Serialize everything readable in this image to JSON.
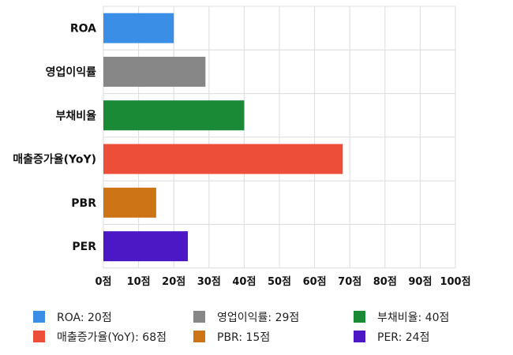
{
  "chart_data": {
    "type": "bar",
    "orientation": "horizontal",
    "categories": [
      "ROA",
      "영업이익률",
      "부채비율",
      "매출증가율(YoY)",
      "PBR",
      "PER"
    ],
    "values": [
      20,
      29,
      40,
      68,
      15,
      24
    ],
    "colors": [
      "#3a8ee6",
      "#878787",
      "#1b8a36",
      "#ec4e3a",
      "#cd7417",
      "#4c17c4"
    ],
    "xlim": [
      0,
      100
    ],
    "x_ticks": [
      0,
      10,
      20,
      30,
      40,
      50,
      60,
      70,
      80,
      90,
      100
    ],
    "tick_suffix": "점",
    "grid": true,
    "legend_position": "bottom",
    "legend": [
      "ROA: 20점",
      "영업이익률: 29점",
      "부채비율: 40점",
      "매출증가율(YoY): 68점",
      "PBR: 15점",
      "PER: 24점"
    ]
  }
}
